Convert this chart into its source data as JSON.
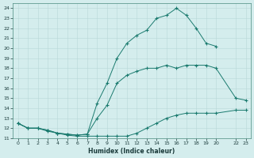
{
  "xlabel": "Humidex (Indice chaleur)",
  "bg_color": "#d4eded",
  "line_color": "#1a7a6e",
  "grid_color": "#b8d8d8",
  "xlim": [
    -0.5,
    23.5
  ],
  "ylim": [
    11,
    24.5
  ],
  "yticks": [
    11,
    12,
    13,
    14,
    15,
    16,
    17,
    18,
    19,
    20,
    21,
    22,
    23,
    24
  ],
  "xticks": [
    0,
    1,
    2,
    3,
    4,
    5,
    6,
    7,
    8,
    9,
    10,
    11,
    12,
    13,
    14,
    15,
    16,
    17,
    18,
    19,
    20,
    22,
    23
  ],
  "line1_x": [
    0,
    1,
    2,
    3,
    4,
    5,
    6,
    7,
    8,
    9,
    10,
    11,
    12,
    13,
    14,
    15,
    16,
    17,
    18,
    19,
    20,
    22,
    23
  ],
  "line1_y": [
    12.5,
    12.0,
    12.0,
    11.7,
    11.5,
    11.3,
    11.2,
    11.2,
    11.2,
    11.2,
    11.2,
    11.2,
    11.5,
    12.0,
    12.5,
    13.0,
    13.3,
    13.5,
    13.5,
    13.5,
    13.5,
    13.8,
    13.8
  ],
  "line2_x": [
    0,
    1,
    2,
    3,
    4,
    5,
    6,
    7,
    8,
    9,
    10,
    11,
    12,
    13,
    14,
    15,
    16,
    17,
    18,
    19,
    20,
    22,
    23
  ],
  "line2_y": [
    12.5,
    12.0,
    12.0,
    11.8,
    11.5,
    11.4,
    11.3,
    11.4,
    13.0,
    14.3,
    16.5,
    17.3,
    17.7,
    18.0,
    18.0,
    18.3,
    18.0,
    18.3,
    18.3,
    18.3,
    18.0,
    15.0,
    14.8
  ],
  "line3_x": [
    0,
    1,
    2,
    3,
    4,
    5,
    6,
    7,
    8,
    9,
    10,
    11,
    12,
    13,
    14,
    15,
    16,
    17,
    18,
    19,
    20
  ],
  "line3_y": [
    12.5,
    12.0,
    12.0,
    11.8,
    11.5,
    11.4,
    11.3,
    11.4,
    14.5,
    16.5,
    19.0,
    20.5,
    21.3,
    21.8,
    23.0,
    23.3,
    24.0,
    23.3,
    22.0,
    20.5,
    20.2
  ]
}
